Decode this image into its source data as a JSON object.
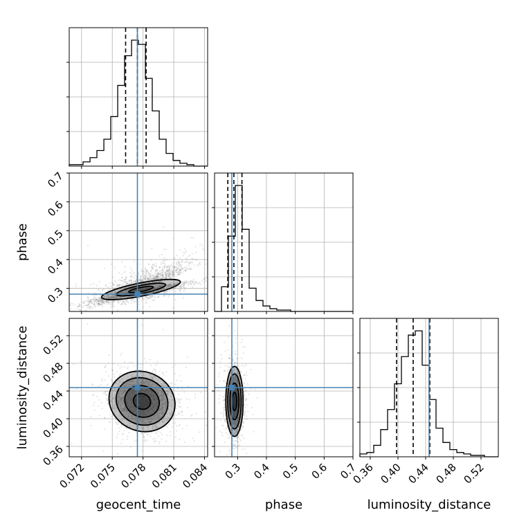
{
  "chart_data": {
    "type": "corner",
    "parameters": [
      "geocent_time",
      "phase",
      "luminosity_distance"
    ],
    "ranges": {
      "geocent_time": [
        0.0708,
        0.0843
      ],
      "phase": [
        0.22,
        0.7
      ],
      "luminosity_distance": [
        0.345,
        0.545
      ]
    },
    "ticks": {
      "geocent_time": [
        "0.072",
        "0.075",
        "0.078",
        "0.081",
        "0.084"
      ],
      "phase": [
        "0.3",
        "0.4",
        "0.5",
        "0.6",
        "0.7"
      ],
      "luminosity_distance": [
        "0.36",
        "0.40",
        "0.44",
        "0.48",
        "0.52"
      ],
      "luminosity_distance_y": [
        "0.36",
        "0.40",
        "0.44",
        "0.48",
        "0.52"
      ]
    },
    "truths": {
      "geocent_time": 0.07745,
      "phase": 0.28,
      "luminosity_distance": 0.445
    },
    "quantiles": {
      "geocent_time": [
        0.0763,
        0.07745,
        0.0783
      ],
      "phase": [
        0.266,
        0.287,
        0.315
      ],
      "luminosity_distance": [
        0.398,
        0.422,
        0.446
      ]
    },
    "histograms": {
      "geocent_time": {
        "bin_edges": [
          0.0708,
          0.07148,
          0.07215,
          0.07283,
          0.0735,
          0.07418,
          0.07485,
          0.07553,
          0.0762,
          0.07688,
          0.07755,
          0.07823,
          0.0789,
          0.07958,
          0.08025,
          0.08093,
          0.0816,
          0.08228,
          0.08295,
          0.08363,
          0.0843
        ],
        "counts": [
          1,
          1,
          3,
          6,
          11,
          19,
          35,
          57,
          78,
          89,
          86,
          62,
          39,
          19,
          9,
          4,
          2,
          1,
          0,
          0
        ]
      },
      "phase": {
        "bin_edges": [
          0.22,
          0.244,
          0.268,
          0.292,
          0.316,
          0.34,
          0.364,
          0.388,
          0.412,
          0.436,
          0.46,
          0.484,
          0.508,
          0.532,
          0.556,
          0.58,
          0.604,
          0.628,
          0.652,
          0.676,
          0.7
        ],
        "counts": [
          0,
          18,
          55,
          92,
          60,
          17,
          8,
          4,
          2,
          1,
          1,
          0,
          0,
          0,
          0,
          0,
          0,
          0,
          0,
          0
        ]
      },
      "luminosity_distance": {
        "bin_edges": [
          0.345,
          0.355,
          0.365,
          0.375,
          0.385,
          0.395,
          0.405,
          0.415,
          0.425,
          0.435,
          0.445,
          0.455,
          0.465,
          0.475,
          0.485,
          0.495,
          0.505,
          0.515,
          0.525,
          0.535,
          0.545
        ],
        "counts": [
          2,
          3,
          8,
          19,
          33,
          51,
          70,
          85,
          88,
          64,
          40,
          20,
          10,
          5,
          3,
          2,
          1,
          1,
          0,
          0
        ]
      }
    },
    "scatter_2d": [
      {
        "x": "geocent_time",
        "y": "phase",
        "mean": [
          0.0778,
          0.296
        ],
        "sd": [
          0.0024,
          0.022
        ],
        "rho": 0.75,
        "contour_levels": [
          0.5,
          1.0,
          1.6
        ]
      },
      {
        "x": "geocent_time",
        "y": "luminosity_distance",
        "mean": [
          0.0779,
          0.425
        ],
        "sd": [
          0.0014,
          0.019
        ],
        "rho": -0.1,
        "contour_levels": [
          0.6,
          1.2,
          1.8,
          2.3
        ]
      },
      {
        "x": "phase",
        "y": "luminosity_distance",
        "mean": [
          0.289,
          0.425
        ],
        "sd": [
          0.013,
          0.022
        ],
        "rho": 0.0,
        "contour_levels": [
          0.6,
          1.2,
          1.8,
          2.3
        ]
      }
    ],
    "grid": true,
    "colors": {
      "hist": "#000000",
      "truth": "#4682b4",
      "points": "#888888"
    }
  }
}
